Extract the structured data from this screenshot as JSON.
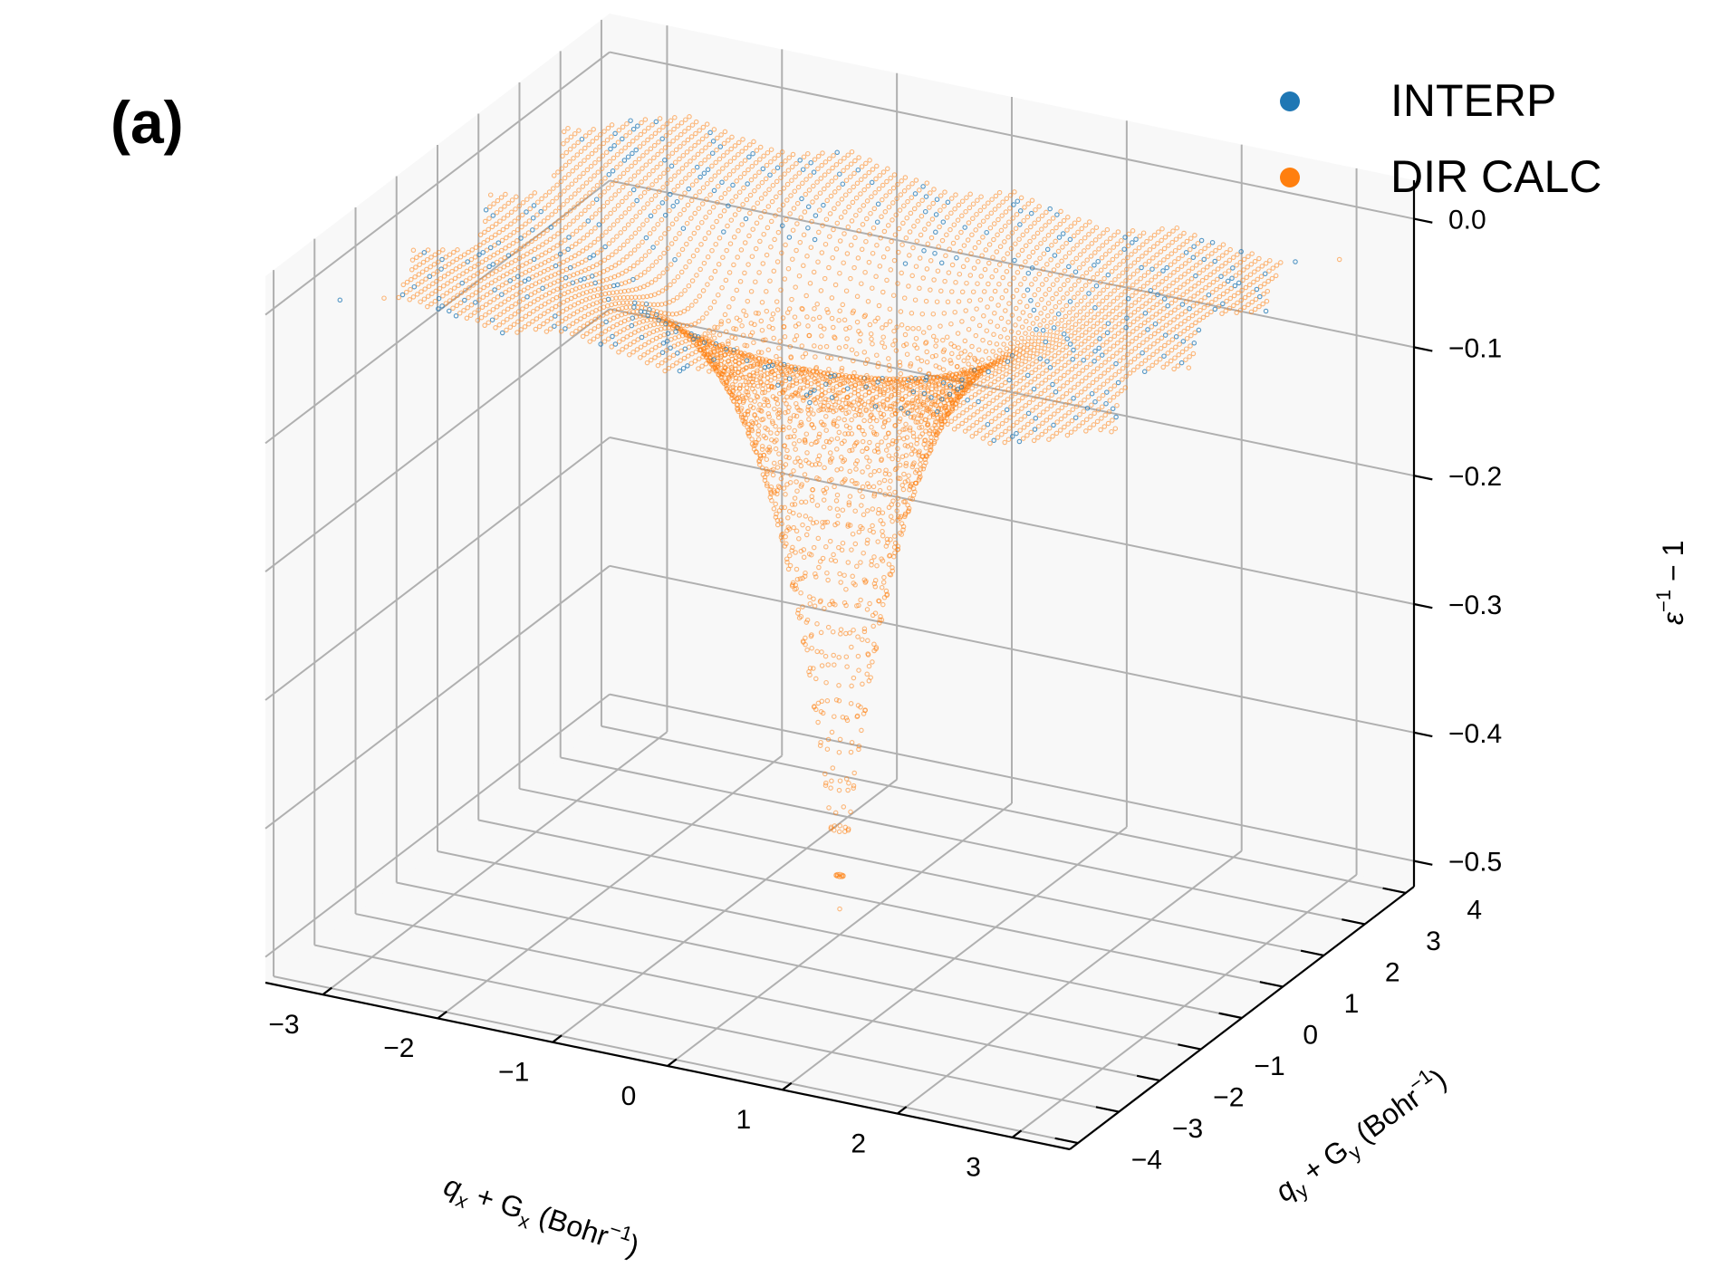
{
  "panel_label": "(a)",
  "chart_data": {
    "type": "scatter",
    "dimensions": 3,
    "title": "",
    "xlabel_base": "q",
    "xlabel_sub": "x",
    "xlabel_mid": " + G",
    "xlabel_sub2": "x",
    "xlabel_unit": " (Bohr",
    "xlabel_sup": "−1",
    "xlabel_close": ")",
    "ylabel_base": "q",
    "ylabel_sub": "y",
    "ylabel_mid": " + G",
    "ylabel_sub2": "y",
    "ylabel_unit": " (Bohr",
    "ylabel_sup": "−1",
    "ylabel_close": ")",
    "zlabel_base": "ε",
    "zlabel_sup": "−1",
    "zlabel_rest": " − 1",
    "xlim": [
      -3.5,
      3.5
    ],
    "ylim": [
      -4.2,
      4.2
    ],
    "zlim": [
      -0.52,
      0.03
    ],
    "xticks": [
      -3,
      -2,
      -1,
      0,
      1,
      2,
      3
    ],
    "xtick_labels": [
      "−3",
      "−2",
      "−1",
      "0",
      "1",
      "2",
      "3"
    ],
    "yticks": [
      -4,
      -3,
      -2,
      -1,
      0,
      1,
      2,
      3,
      4
    ],
    "ytick_labels": [
      "−4",
      "−3",
      "−2",
      "−1",
      "0",
      "1",
      "2",
      "3",
      "4"
    ],
    "zticks": [
      0.0,
      -0.1,
      -0.2,
      -0.3,
      -0.4,
      -0.5
    ],
    "ztick_labels": [
      "0.0",
      "−0.1",
      "−0.2",
      "−0.3",
      "−0.4",
      "−0.5"
    ],
    "grid": true,
    "legend_position": "top-right",
    "surface": {
      "description_of_function": "z = -0.5 * exp(-r/0.55) over a rotated square grid",
      "min_z_at_origin": -0.5,
      "plateau_z": -0.01,
      "x_range_sampled": [
        -3.3,
        3.3
      ],
      "y_range_sampled": [
        -3.3,
        3.3
      ],
      "decay_length": 0.55
    },
    "series": [
      {
        "name": "INTERP",
        "color": "#1f77b4"
      },
      {
        "name": "DIR CALC",
        "color": "#ff7f0e"
      }
    ]
  }
}
